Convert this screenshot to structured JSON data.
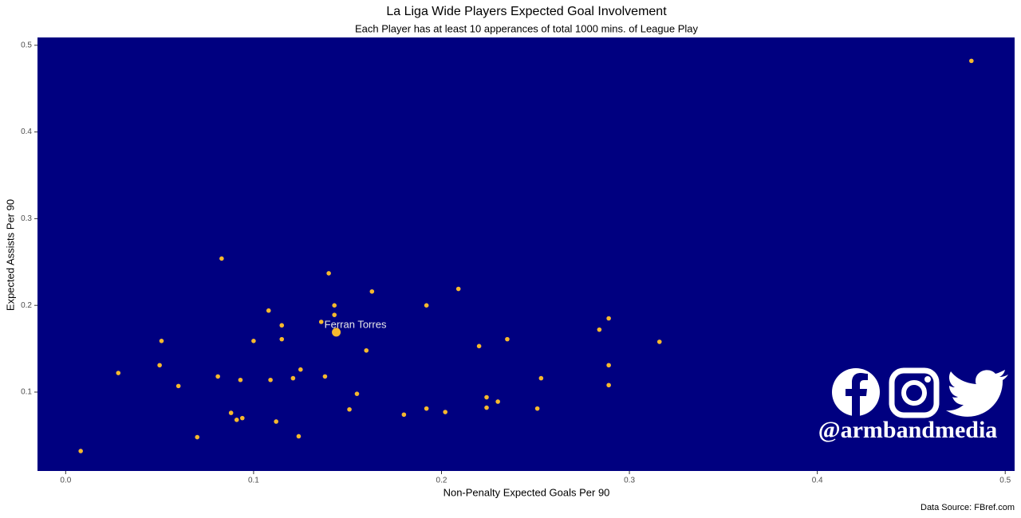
{
  "chart_data": {
    "type": "scatter",
    "title": "La Liga Wide Players Expected Goal Involvement",
    "subtitle": "Each Player has at least 10 apperances of total 1000 mins. of League Play",
    "x_label": "Non-Penalty Expected Goals Per 90",
    "y_label": "Expected Assists Per 90",
    "source": "Data Source: FBref.com",
    "watermark": "@armbandmedia",
    "background": "#000080",
    "grid": false,
    "xlim": [
      -0.015,
      0.505
    ],
    "ylim": [
      0.009,
      0.509
    ],
    "xticks": [
      {
        "value": 0,
        "label": "0.0"
      },
      0.1,
      0.2,
      0.3,
      0.4,
      0.5
    ],
    "yticks": [
      0.1,
      0.2,
      0.3,
      0.4,
      0.5
    ],
    "series": [
      {
        "color": "#f5b82e",
        "x": [
          0.482,
          0.083,
          0.14,
          0.209,
          0.163,
          0.143,
          0.192,
          0.108,
          0.143,
          0.289,
          0.136,
          0.115,
          0.284,
          0.115,
          0.235,
          0.316,
          0.051,
          0.1,
          0.22,
          0.16,
          0.05,
          0.289,
          0.125,
          0.028,
          0.081,
          0.138,
          0.121,
          0.253,
          0.093,
          0.109,
          0.06,
          0.289,
          0.155,
          0.224,
          0.23,
          0.224,
          0.192,
          0.251,
          0.151,
          0.088,
          0.202,
          0.18,
          0.094,
          0.091,
          0.112,
          0.07,
          0.124,
          0.008
        ],
        "values": [
          0.482,
          0.254,
          0.237,
          0.219,
          0.216,
          0.2,
          0.2,
          0.194,
          0.189,
          0.185,
          0.181,
          0.177,
          0.172,
          0.161,
          0.161,
          0.158,
          0.159,
          0.159,
          0.153,
          0.148,
          0.131,
          0.131,
          0.126,
          0.122,
          0.118,
          0.118,
          0.116,
          0.116,
          0.114,
          0.114,
          0.107,
          0.108,
          0.098,
          0.094,
          0.089,
          0.082,
          0.081,
          0.081,
          0.08,
          0.076,
          0.077,
          0.074,
          0.07,
          0.068,
          0.066,
          0.048,
          0.049,
          0.032
        ]
      },
      {
        "color": "#f5b82e",
        "x": [
          0.144
        ],
        "values": [
          0.169
        ],
        "labels": [
          "Ferran Torres"
        ]
      }
    ]
  }
}
